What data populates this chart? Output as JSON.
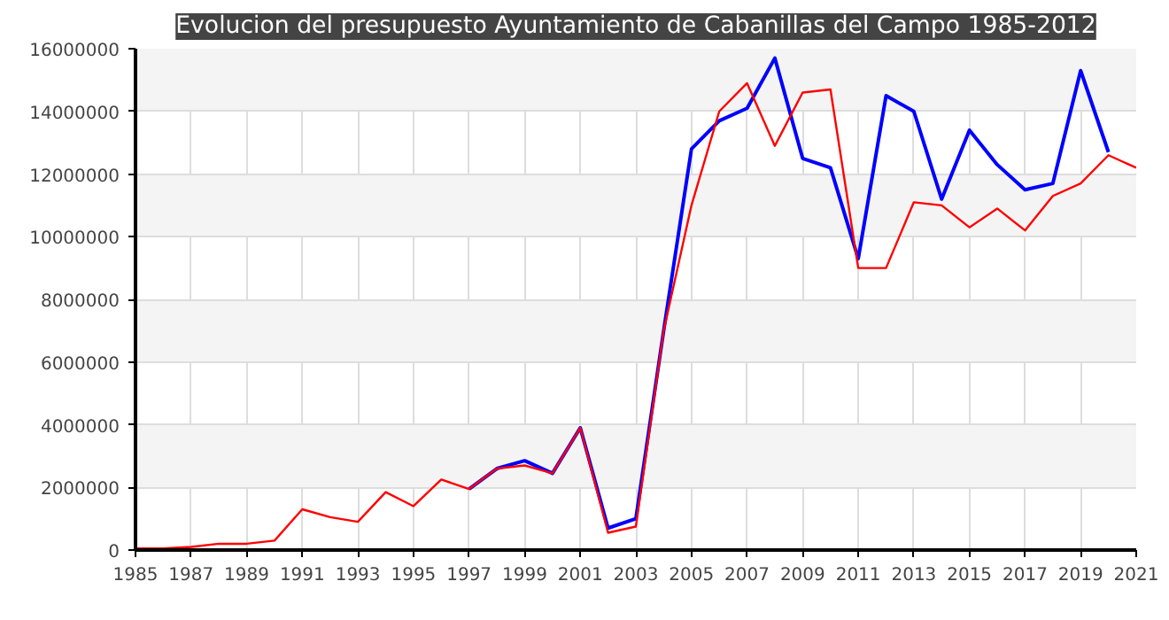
{
  "chart_data": {
    "type": "line",
    "title": "Evolucion del presupuesto Ayuntamiento de Cabanillas del Campo 1985-2012",
    "x": [
      1985,
      1986,
      1987,
      1988,
      1989,
      1990,
      1991,
      1992,
      1993,
      1994,
      1995,
      1996,
      1997,
      1998,
      1999,
      2000,
      2001,
      2002,
      2003,
      2004,
      2005,
      2006,
      2007,
      2008,
      2009,
      2010,
      2011,
      2012,
      2013,
      2014,
      2015,
      2016,
      2017,
      2018,
      2019,
      2020,
      2021
    ],
    "series": [
      {
        "color": "#0000ff",
        "values": [
          null,
          null,
          null,
          null,
          null,
          null,
          null,
          null,
          null,
          null,
          null,
          null,
          1950000,
          2600000,
          2850000,
          2450000,
          3900000,
          700000,
          1000000,
          7000000,
          12800000,
          13700000,
          14100000,
          15700000,
          12500000,
          12200000,
          9300000,
          14500000,
          14000000,
          11200000,
          13400000,
          12300000,
          11500000,
          11700000,
          15300000,
          12700000,
          null
        ]
      },
      {
        "color": "#ff0000",
        "values": [
          50000,
          50000,
          100000,
          200000,
          200000,
          300000,
          1300000,
          1050000,
          900000,
          1850000,
          1400000,
          2250000,
          1950000,
          2600000,
          2700000,
          2450000,
          3900000,
          550000,
          750000,
          7000000,
          11000000,
          14000000,
          14900000,
          12900000,
          14600000,
          14700000,
          9000000,
          9000000,
          11100000,
          11000000,
          10300000,
          10900000,
          10200000,
          11300000,
          11700000,
          12600000,
          12200000
        ]
      }
    ],
    "xlim": [
      1985,
      2021
    ],
    "xticks": [
      1985,
      1987,
      1989,
      1991,
      1993,
      1995,
      1997,
      1999,
      2001,
      2003,
      2005,
      2007,
      2009,
      2011,
      2013,
      2015,
      2017,
      2019,
      2021
    ],
    "ylim": [
      0,
      16000000
    ],
    "yticks": [
      0,
      2000000,
      4000000,
      6000000,
      8000000,
      10000000,
      12000000,
      14000000,
      16000000
    ],
    "grid": true,
    "line_style": "solid"
  }
}
